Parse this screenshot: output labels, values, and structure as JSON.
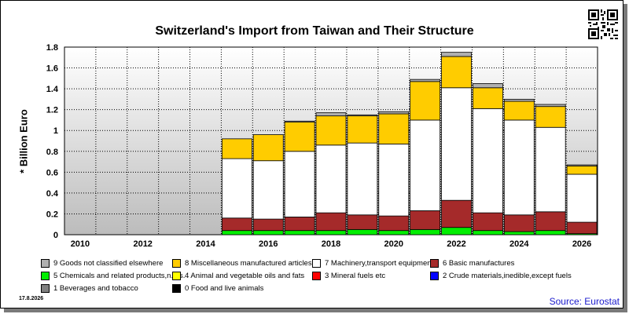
{
  "title": "Switzerland's Import from Taiwan and Their Structure",
  "ylabel": "* Billion Euro",
  "date": "17.8.2026",
  "source": "Source: Eurostat",
  "qr_icon": "qr-code-icon",
  "chart_data": {
    "type": "bar",
    "stacked": true,
    "x": [
      2010,
      2011,
      2012,
      2013,
      2014,
      2015,
      2016,
      2017,
      2018,
      2019,
      2020,
      2021,
      2022,
      2023,
      2024,
      2025,
      2026
    ],
    "xticks": [
      "2010",
      "2012",
      "2014",
      "2016",
      "2018",
      "2020",
      "2022",
      "2024",
      "2026"
    ],
    "yticks": [
      "0",
      "0.2",
      "0.4",
      "0.6",
      "0.8",
      "1",
      "1.2",
      "1.4",
      "1.6",
      "1.8"
    ],
    "ylim": [
      0,
      1.8
    ],
    "grid": true,
    "legend_position": "bottom",
    "series": [
      {
        "name": "0 Food and live animals",
        "color": "#000000",
        "values": [
          0,
          0,
          0,
          0,
          0,
          0,
          0,
          0,
          0,
          0,
          0,
          0,
          0,
          0,
          0,
          0,
          0
        ]
      },
      {
        "name": "1 Beverages and tobacco",
        "color": "#808080",
        "values": [
          0,
          0,
          0,
          0,
          0,
          0,
          0,
          0,
          0,
          0,
          0,
          0,
          0,
          0,
          0,
          0,
          0
        ]
      },
      {
        "name": "2 Crude materials,inedible,except fuels",
        "color": "#0000ff",
        "values": [
          0,
          0,
          0,
          0,
          0,
          0,
          0,
          0,
          0,
          0,
          0,
          0,
          0,
          0,
          0,
          0,
          0
        ]
      },
      {
        "name": "3 Mineral fuels etc",
        "color": "#ff0000",
        "values": [
          0,
          0,
          0,
          0,
          0,
          0,
          0,
          0,
          0,
          0,
          0,
          0,
          0,
          0,
          0,
          0,
          0
        ]
      },
      {
        "name": "4 Animal and vegetable oils and fats",
        "color": "#ffff00",
        "values": [
          0,
          0,
          0,
          0,
          0,
          0,
          0,
          0,
          0,
          0,
          0,
          0,
          0,
          0,
          0,
          0,
          0
        ]
      },
      {
        "name": "5 Chemicals and related products,n.e.s.",
        "color": "#00ee00",
        "values": [
          0,
          0,
          0,
          0,
          0,
          0.04,
          0.04,
          0.04,
          0.04,
          0.05,
          0.04,
          0.05,
          0.07,
          0.04,
          0.03,
          0.04,
          0.01
        ]
      },
      {
        "name": "6 Basic manufactures",
        "color": "#a52a2a",
        "values": [
          0,
          0,
          0,
          0,
          0,
          0.12,
          0.11,
          0.13,
          0.17,
          0.14,
          0.14,
          0.18,
          0.26,
          0.17,
          0.16,
          0.18,
          0.11
        ]
      },
      {
        "name": "7 Machinery,transport equipment",
        "color": "#ffffff",
        "values": [
          0,
          0,
          0,
          0,
          0,
          0.57,
          0.56,
          0.63,
          0.65,
          0.69,
          0.69,
          0.87,
          1.08,
          1.0,
          0.91,
          0.81,
          0.46
        ]
      },
      {
        "name": "8 Miscellaneous manufactured articles",
        "color": "#ffcc00",
        "values": [
          0,
          0,
          0,
          0,
          0,
          0.19,
          0.25,
          0.28,
          0.28,
          0.26,
          0.29,
          0.37,
          0.3,
          0.2,
          0.18,
          0.2,
          0.08
        ]
      },
      {
        "name": "9 Goods not classified elsewhere",
        "color": "#b0b0b0",
        "values": [
          0,
          0,
          0,
          0,
          0,
          0,
          0,
          0.01,
          0.03,
          0.01,
          0.02,
          0.02,
          0.04,
          0.04,
          0.02,
          0.02,
          0.01
        ]
      }
    ]
  }
}
